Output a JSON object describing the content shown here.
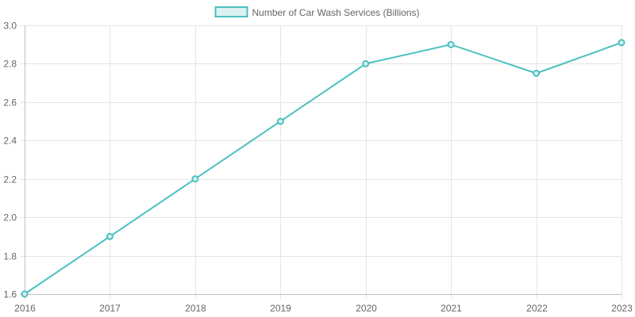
{
  "chart_data": {
    "type": "line",
    "x": [
      "2016",
      "2017",
      "2018",
      "2019",
      "2020",
      "2021",
      "2022",
      "2023"
    ],
    "series": [
      {
        "name": "Number of Car Wash Services (Billions)",
        "values": [
          1.6,
          1.9,
          2.2,
          2.5,
          2.8,
          2.9,
          2.75,
          2.91
        ],
        "color": "#4bc0c0",
        "fill": "#dbf2f2"
      }
    ],
    "yticks": [
      "1.6",
      "1.8",
      "2.0",
      "2.2",
      "2.4",
      "2.6",
      "2.8",
      "3.0"
    ],
    "ylim": [
      1.6,
      3.0
    ],
    "grid": true,
    "legend_position": "top-center"
  }
}
